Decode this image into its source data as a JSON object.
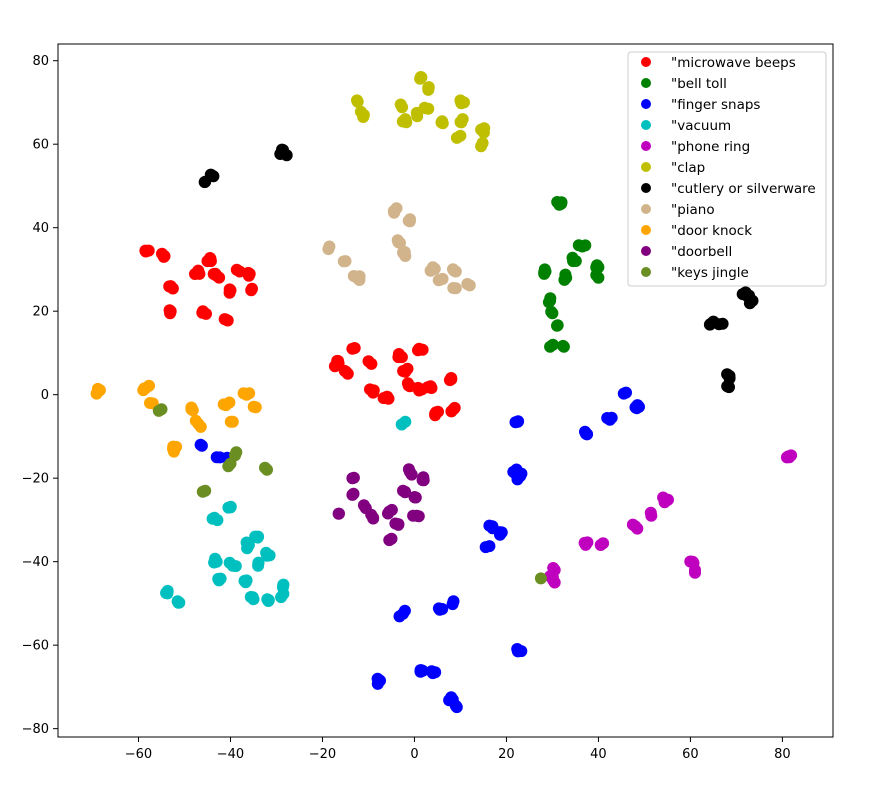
{
  "chart_data": {
    "type": "scatter",
    "title": "",
    "xlabel": "",
    "ylabel": "",
    "xlim": [
      -77.5,
      91
    ],
    "ylim": [
      -82,
      84
    ],
    "xticks": [
      -60,
      -40,
      -20,
      0,
      20,
      40,
      60,
      80
    ],
    "yticks": [
      -80,
      -60,
      -40,
      -20,
      0,
      20,
      40,
      60,
      80
    ],
    "xtick_labels": [
      "−60",
      "−40",
      "−20",
      "0",
      "20",
      "40",
      "60",
      "80"
    ],
    "ytick_labels": [
      "−80",
      "−60",
      "−40",
      "−20",
      "0",
      "20",
      "40",
      "60",
      "80"
    ],
    "grid": false,
    "legend_position": "top-right",
    "series": [
      {
        "name": "\"microwave beeps",
        "color": "#ff0000",
        "clusters": [
          [
            -58.5,
            34.5,
            3
          ],
          [
            -54.5,
            33,
            3
          ],
          [
            -53,
            26,
            4
          ],
          [
            -53,
            20,
            3
          ],
          [
            -47,
            29.5,
            4
          ],
          [
            -45,
            32,
            4
          ],
          [
            -43,
            28.5,
            4
          ],
          [
            -46,
            20,
            3
          ],
          [
            -41,
            18,
            3
          ],
          [
            -40,
            25,
            3
          ],
          [
            -38,
            29.5,
            2
          ],
          [
            -36,
            28.5,
            3
          ],
          [
            -35.5,
            25,
            2
          ],
          [
            -16.5,
            7.5,
            4
          ],
          [
            -14.5,
            5,
            3
          ],
          [
            -13.5,
            11,
            2
          ],
          [
            -10,
            8,
            2
          ],
          [
            -9,
            0.5,
            3
          ],
          [
            -6,
            -0.5,
            4
          ],
          [
            -3.5,
            9,
            3
          ],
          [
            -2,
            5.5,
            3
          ],
          [
            -1,
            2,
            3
          ],
          [
            1,
            11,
            3
          ],
          [
            1,
            1,
            3
          ],
          [
            3.5,
            2,
            3
          ],
          [
            4.5,
            -4.5,
            4
          ],
          [
            8,
            4,
            3
          ],
          [
            8.5,
            -3.5,
            3
          ]
        ]
      },
      {
        "name": "\"bell toll",
        "color": "#008000",
        "clusters": [
          [
            31.5,
            45.5,
            4
          ],
          [
            28.5,
            29.5,
            4
          ],
          [
            33,
            28,
            3
          ],
          [
            34.5,
            32,
            3
          ],
          [
            36.5,
            35.5,
            3
          ],
          [
            40,
            30.5,
            3
          ],
          [
            40,
            28,
            2
          ],
          [
            29.5,
            22.5,
            3
          ],
          [
            30,
            19.5,
            2
          ],
          [
            31,
            16.5,
            2
          ],
          [
            29.5,
            11.5,
            2
          ],
          [
            32.5,
            11.5,
            2
          ]
        ]
      },
      {
        "name": "\"finger snaps",
        "color": "#0000ff",
        "clusters": [
          [
            -46.5,
            -12,
            2
          ],
          [
            -43,
            -15,
            2
          ],
          [
            -40,
            -15.5,
            2
          ],
          [
            22.5,
            -6.5,
            3
          ],
          [
            21.5,
            -18.5,
            3
          ],
          [
            23,
            -19.5,
            3
          ],
          [
            17,
            -32,
            3
          ],
          [
            19,
            -33,
            3
          ],
          [
            15.5,
            -36.5,
            2
          ],
          [
            37.5,
            -9.5,
            4
          ],
          [
            42.5,
            -6,
            3
          ],
          [
            46,
            0.5,
            2
          ],
          [
            48.5,
            -2.5,
            4
          ],
          [
            -2.5,
            -52.5,
            3
          ],
          [
            5.5,
            -51.5,
            3
          ],
          [
            8.5,
            -49.5,
            2
          ],
          [
            -7.5,
            -68.5,
            4
          ],
          [
            1.5,
            -66,
            4
          ],
          [
            4.5,
            -66.5,
            3
          ],
          [
            8,
            -72.5,
            3
          ],
          [
            9,
            -74.5,
            2
          ],
          [
            22.5,
            -61.5,
            4
          ]
        ]
      },
      {
        "name": "\"vacuum",
        "color": "#00bfbf",
        "clusters": [
          [
            -2,
            -6.5,
            2
          ],
          [
            -54,
            -47.5,
            3
          ],
          [
            -51.5,
            -49.5,
            3
          ],
          [
            -43.5,
            -29.5,
            3
          ],
          [
            -40,
            -27,
            3
          ],
          [
            -43,
            -40,
            3
          ],
          [
            -39.5,
            -41,
            3
          ],
          [
            -42.5,
            -44.5,
            3
          ],
          [
            -36,
            -36,
            3
          ],
          [
            -34,
            -34,
            3
          ],
          [
            -34,
            -41,
            3
          ],
          [
            -31.5,
            -38.5,
            3
          ],
          [
            -36.5,
            -44.5,
            3
          ],
          [
            -35,
            -49,
            3
          ],
          [
            -32,
            -49,
            3
          ],
          [
            -28.5,
            -45.5,
            3
          ],
          [
            -29,
            -48.5,
            2
          ]
        ]
      },
      {
        "name": "\"phone ring",
        "color": "#bf00bf",
        "clusters": [
          [
            81.5,
            -15,
            4
          ],
          [
            54.5,
            -25,
            4
          ],
          [
            51.5,
            -29,
            2
          ],
          [
            48,
            -31.5,
            3
          ],
          [
            60.5,
            -40,
            3
          ],
          [
            61,
            -42,
            2
          ],
          [
            37,
            -35.5,
            3
          ],
          [
            40.5,
            -36,
            2
          ],
          [
            29.5,
            -43.5,
            2
          ],
          [
            30.5,
            -42,
            2
          ],
          [
            30.5,
            -45,
            2
          ]
        ]
      },
      {
        "name": "\"clap",
        "color": "#bfbf00",
        "clusters": [
          [
            -12.5,
            70.5,
            2
          ],
          [
            -11,
            67,
            3
          ],
          [
            -3,
            69.5,
            2
          ],
          [
            -2,
            66,
            3
          ],
          [
            0.5,
            67.5,
            2
          ],
          [
            1.5,
            76,
            3
          ],
          [
            3,
            73,
            3
          ],
          [
            3,
            68.5,
            3
          ],
          [
            6,
            65.5,
            3
          ],
          [
            10,
            70.5,
            3
          ],
          [
            10.5,
            66,
            3
          ],
          [
            10,
            62,
            2
          ],
          [
            14.5,
            63.5,
            3
          ],
          [
            14.5,
            59.5,
            2
          ]
        ]
      },
      {
        "name": "\"cutlery or silverware",
        "color": "#000000",
        "clusters": [
          [
            -28.5,
            58,
            5
          ],
          [
            -44,
            52.5,
            3
          ],
          [
            -45.5,
            51,
            2
          ],
          [
            65,
            17.5,
            3
          ],
          [
            67,
            17,
            2
          ],
          [
            72,
            24.5,
            4
          ],
          [
            73.5,
            22.5,
            2
          ],
          [
            68.5,
            4.5,
            3
          ],
          [
            68,
            2,
            2
          ]
        ]
      },
      {
        "name": "\"piano",
        "color": "#d2b48c",
        "clusters": [
          [
            -4.5,
            44,
            3
          ],
          [
            -1,
            41.5,
            3
          ],
          [
            -18.5,
            35.5,
            2
          ],
          [
            -15,
            32,
            2
          ],
          [
            -12.5,
            28,
            5
          ],
          [
            -3.5,
            36.5,
            3
          ],
          [
            -2.5,
            34,
            3
          ],
          [
            4,
            30.5,
            3
          ],
          [
            5.5,
            27.5,
            3
          ],
          [
            9,
            29.5,
            3
          ],
          [
            9,
            25.5,
            2
          ],
          [
            11.5,
            26.5,
            2
          ]
        ]
      },
      {
        "name": "\"door knock",
        "color": "#ffa500",
        "clusters": [
          [
            -68.5,
            1,
            4
          ],
          [
            -58.5,
            1.5,
            4
          ],
          [
            -57.5,
            -2,
            2
          ],
          [
            -52.5,
            -13,
            4
          ],
          [
            -48.5,
            -3.5,
            3
          ],
          [
            -47,
            -7,
            3
          ],
          [
            -41,
            -2.5,
            3
          ],
          [
            -39.5,
            -6.5,
            2
          ],
          [
            -36.5,
            0,
            3
          ],
          [
            -34.5,
            -3,
            2
          ]
        ]
      },
      {
        "name": "\"doorbell",
        "color": "#800080",
        "clusters": [
          [
            -13.5,
            -20,
            2
          ],
          [
            -13.5,
            -24,
            2
          ],
          [
            -16.5,
            -28.5,
            2
          ],
          [
            -11,
            -26.5,
            2
          ],
          [
            -9,
            -29.5,
            3
          ],
          [
            -5.5,
            -28,
            3
          ],
          [
            -3.5,
            -31,
            3
          ],
          [
            -5,
            -34.5,
            2
          ],
          [
            -2.5,
            -23,
            3
          ],
          [
            -1,
            -18.5,
            3
          ],
          [
            2,
            -20.5,
            3
          ],
          [
            0,
            -24.5,
            3
          ],
          [
            0.5,
            -29,
            3
          ]
        ]
      },
      {
        "name": "\"keys jingle",
        "color": "#6b8e23",
        "clusters": [
          [
            -55,
            -3.5,
            2
          ],
          [
            -40,
            -16.5,
            2
          ],
          [
            -39,
            -14.5,
            2
          ],
          [
            -45.5,
            -23,
            2
          ],
          [
            -32.5,
            -17.5,
            2
          ],
          [
            27.5,
            -44,
            1
          ]
        ]
      }
    ]
  }
}
